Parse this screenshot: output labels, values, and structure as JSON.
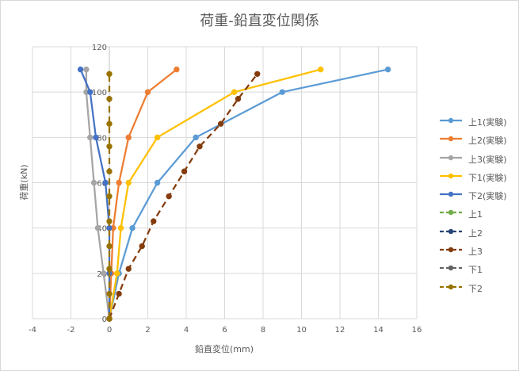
{
  "chart_data": {
    "type": "scatter",
    "title": "荷重-鉛直変位関係",
    "xlabel": "鉛直変位(mm)",
    "ylabel": "荷重(kN)",
    "xlim": [
      -4,
      16
    ],
    "ylim": [
      0,
      120
    ],
    "xticks": [
      "-4",
      "-2",
      "0",
      "2",
      "4",
      "6",
      "8",
      "10",
      "12",
      "14",
      "16"
    ],
    "yticks": [
      "0",
      "20",
      "40",
      "60",
      "80",
      "100",
      "120"
    ],
    "grid": "vertical and horizontal major",
    "legend_position": "right",
    "series": [
      {
        "name": "上1(実験)",
        "color": "#5b9bd5",
        "dash": false,
        "x": [
          0,
          0.5,
          1.2,
          2.5,
          4.5,
          9.0,
          14.5
        ],
        "y": [
          0,
          20,
          40,
          60,
          80,
          100,
          110
        ]
      },
      {
        "name": "上2(実験)",
        "color": "#ed7d31",
        "dash": false,
        "x": [
          0,
          0.1,
          0.2,
          0.5,
          1.0,
          2.0,
          3.5
        ],
        "y": [
          0,
          20,
          40,
          60,
          80,
          100,
          110
        ]
      },
      {
        "name": "上3(実験)",
        "color": "#a5a5a5",
        "dash": false,
        "x": [
          0,
          -0.3,
          -0.6,
          -0.8,
          -1.0,
          -1.2,
          -1.2
        ],
        "y": [
          0,
          20,
          40,
          60,
          80,
          100,
          110
        ]
      },
      {
        "name": "下1(実験)",
        "color": "#ffc000",
        "dash": false,
        "x": [
          0,
          0.4,
          0.6,
          1.0,
          2.5,
          6.5,
          11.0
        ],
        "y": [
          0,
          20,
          40,
          60,
          80,
          100,
          110
        ]
      },
      {
        "name": "下2(実験)",
        "color": "#4472c4",
        "dash": false,
        "x": [
          0,
          0,
          0,
          -0.2,
          -0.7,
          -1.0,
          -1.5
        ],
        "y": [
          0,
          20,
          40,
          60,
          80,
          100,
          110
        ]
      },
      {
        "name": "上1",
        "color": "#70ad47",
        "dash": true,
        "x": [],
        "y": []
      },
      {
        "name": "上2",
        "color": "#264478",
        "dash": true,
        "x": [],
        "y": []
      },
      {
        "name": "上3",
        "color": "#843c0c",
        "dash": true,
        "x": [
          0,
          0.5,
          1.0,
          1.7,
          2.3,
          3.1,
          3.9,
          4.7,
          5.8,
          6.7,
          7.7
        ],
        "y": [
          0,
          11,
          22,
          32,
          43,
          54,
          65,
          76,
          86,
          97,
          108
        ]
      },
      {
        "name": "下1",
        "color": "#636363",
        "dash": true,
        "x": [],
        "y": []
      },
      {
        "name": "下2",
        "color": "#997300",
        "dash": true,
        "x": [
          0,
          0,
          0,
          0,
          0,
          0,
          0,
          0,
          0,
          0,
          0
        ],
        "y": [
          0,
          11,
          22,
          32,
          43,
          54,
          65,
          76,
          86,
          97,
          108
        ]
      }
    ]
  }
}
